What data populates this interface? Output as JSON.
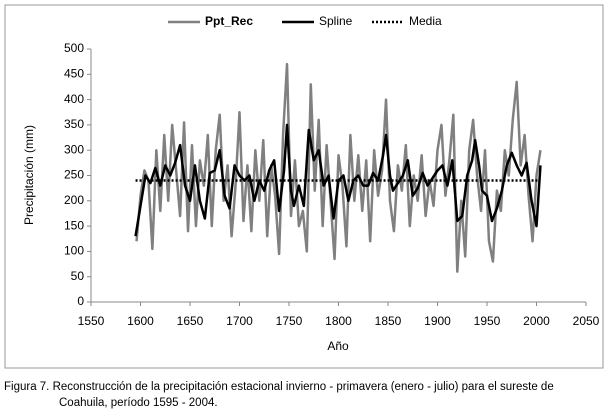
{
  "chart_data": {
    "type": "line",
    "series": [
      {
        "name": "Ppt_Rec",
        "color": "#808080",
        "style": "solid",
        "x": [
          1596,
          1600,
          1604,
          1608,
          1612,
          1616,
          1620,
          1624,
          1628,
          1632,
          1636,
          1640,
          1644,
          1648,
          1652,
          1656,
          1660,
          1664,
          1668,
          1672,
          1676,
          1680,
          1684,
          1688,
          1692,
          1696,
          1700,
          1704,
          1708,
          1712,
          1716,
          1720,
          1724,
          1728,
          1732,
          1736,
          1740,
          1744,
          1748,
          1752,
          1756,
          1760,
          1764,
          1768,
          1772,
          1776,
          1780,
          1784,
          1788,
          1792,
          1796,
          1800,
          1804,
          1808,
          1812,
          1816,
          1820,
          1824,
          1828,
          1832,
          1836,
          1840,
          1844,
          1848,
          1852,
          1856,
          1860,
          1864,
          1868,
          1872,
          1876,
          1880,
          1884,
          1888,
          1892,
          1896,
          1900,
          1904,
          1908,
          1912,
          1916,
          1920,
          1924,
          1928,
          1932,
          1936,
          1940,
          1944,
          1948,
          1952,
          1956,
          1960,
          1964,
          1968,
          1972,
          1976,
          1980,
          1984,
          1988,
          1992,
          1996,
          2000,
          2004
        ],
        "values": [
          120,
          210,
          260,
          240,
          105,
          300,
          180,
          330,
          200,
          350,
          260,
          170,
          355,
          140,
          310,
          150,
          280,
          230,
          330,
          150,
          300,
          370,
          200,
          270,
          130,
          230,
          375,
          160,
          270,
          140,
          300,
          200,
          320,
          130,
          270,
          210,
          95,
          330,
          470,
          170,
          280,
          150,
          180,
          100,
          430,
          220,
          360,
          150,
          310,
          200,
          85,
          290,
          230,
          110,
          330,
          200,
          290,
          180,
          280,
          120,
          300,
          210,
          260,
          400,
          200,
          140,
          270,
          220,
          310,
          150,
          250,
          200,
          290,
          170,
          240,
          190,
          300,
          350,
          210,
          280,
          370,
          60,
          200,
          90,
          300,
          360,
          250,
          180,
          300,
          120,
          80,
          220,
          180,
          300,
          250,
          360,
          435,
          270,
          330,
          210,
          120,
          250,
          300
        ]
      },
      {
        "name": "Spline",
        "color": "#000000",
        "style": "solid",
        "x": [
          1595,
          1600,
          1605,
          1610,
          1615,
          1620,
          1625,
          1630,
          1635,
          1640,
          1645,
          1650,
          1655,
          1660,
          1665,
          1670,
          1675,
          1680,
          1685,
          1690,
          1695,
          1700,
          1705,
          1710,
          1715,
          1720,
          1725,
          1730,
          1735,
          1740,
          1745,
          1748,
          1752,
          1755,
          1760,
          1765,
          1770,
          1775,
          1780,
          1785,
          1790,
          1795,
          1800,
          1805,
          1810,
          1815,
          1820,
          1825,
          1830,
          1835,
          1840,
          1845,
          1848,
          1852,
          1855,
          1860,
          1865,
          1870,
          1875,
          1880,
          1885,
          1890,
          1895,
          1900,
          1905,
          1910,
          1915,
          1920,
          1925,
          1930,
          1935,
          1938,
          1942,
          1945,
          1950,
          1955,
          1960,
          1965,
          1970,
          1975,
          1980,
          1985,
          1990,
          1995,
          2000,
          2004
        ],
        "values": [
          130,
          190,
          250,
          235,
          265,
          230,
          270,
          250,
          275,
          310,
          230,
          200,
          270,
          200,
          165,
          255,
          260,
          300,
          210,
          185,
          270,
          250,
          240,
          250,
          200,
          240,
          220,
          260,
          280,
          180,
          260,
          350,
          220,
          190,
          230,
          190,
          340,
          280,
          300,
          230,
          250,
          165,
          240,
          250,
          200,
          240,
          250,
          230,
          230,
          255,
          240,
          290,
          330,
          250,
          220,
          235,
          250,
          280,
          210,
          225,
          255,
          230,
          245,
          260,
          270,
          230,
          280,
          160,
          170,
          250,
          280,
          320,
          270,
          220,
          210,
          160,
          185,
          220,
          270,
          295,
          270,
          250,
          275,
          200,
          150,
          270
        ]
      },
      {
        "name": "Media",
        "color": "#000000",
        "style": "dotted",
        "x": [
          1595,
          2004
        ],
        "values": [
          240,
          240
        ]
      }
    ],
    "xlabel": "Año",
    "ylabel": "Precipitación (mm)",
    "xlim": [
      1550,
      2050
    ],
    "xticks": [
      1550,
      1600,
      1650,
      1700,
      1750,
      1800,
      1850,
      1900,
      1950,
      2000,
      2050
    ],
    "ylim": [
      0,
      500
    ],
    "yticks": [
      0,
      50,
      100,
      150,
      200,
      250,
      300,
      350,
      400,
      450,
      500
    ],
    "grid": false,
    "legend": "top",
    "caption": [
      "Figura 7. Reconstrucción de la precipitación estacional invierno - primavera (enero - julio) para el sureste de",
      "Coahuila, período 1595 - 2004."
    ]
  }
}
